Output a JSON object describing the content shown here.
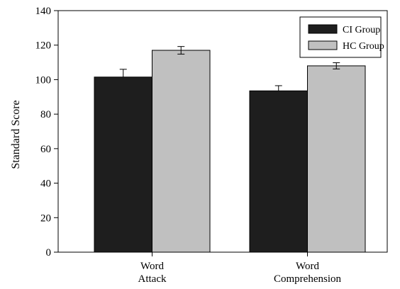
{
  "chart_data": {
    "type": "bar",
    "title": "",
    "xlabel": "",
    "ylabel": "Standard Score",
    "ylim": [
      0,
      140
    ],
    "yticks": [
      0,
      20,
      40,
      60,
      80,
      100,
      120,
      140
    ],
    "categories": [
      [
        "Word",
        "Attack"
      ],
      [
        "Word",
        "Comprehension"
      ]
    ],
    "series": [
      {
        "name": "CI Group",
        "color": "#1e1e1e",
        "values": [
          101.5,
          93.5
        ],
        "errors": [
          4.5,
          3.0
        ]
      },
      {
        "name": "HC Group",
        "color": "#c0c0c0",
        "values": [
          117.0,
          108.0
        ],
        "errors": [
          2.2,
          1.8
        ]
      }
    ],
    "legend_position": "top-right",
    "grid": false
  }
}
